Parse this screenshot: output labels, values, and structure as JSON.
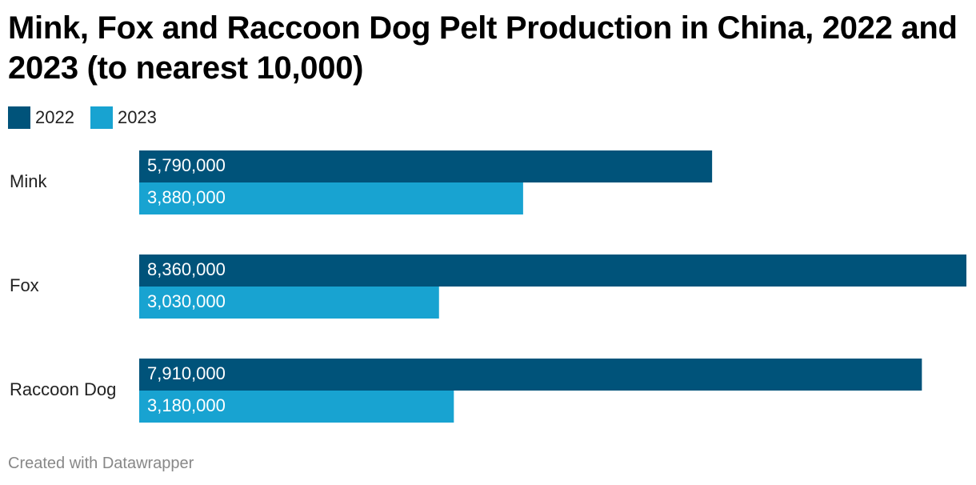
{
  "title": "Mink, Fox and Raccoon Dog Pelt Production in China, 2022 and 2023 (to nearest 10,000)",
  "footer": "Created with Datawrapper",
  "colors": {
    "series_2022": "#00537a",
    "series_2023": "#18a3d1",
    "value_label": "#ffffff",
    "category_label": "#222222"
  },
  "chart_data": {
    "type": "bar",
    "orientation": "horizontal",
    "categories": [
      "Mink",
      "Fox",
      "Raccoon Dog"
    ],
    "series": [
      {
        "name": "2022",
        "values": [
          5790000,
          8360000,
          7910000
        ],
        "labels": [
          "5,790,000",
          "8,360,000",
          "7,910,000"
        ]
      },
      {
        "name": "2023",
        "values": [
          3880000,
          3030000,
          3180000
        ],
        "labels": [
          "3,880,000",
          "3,030,000",
          "3,180,000"
        ]
      }
    ],
    "xlim": [
      0,
      8360000
    ],
    "grid": false,
    "legend": "top-left"
  }
}
